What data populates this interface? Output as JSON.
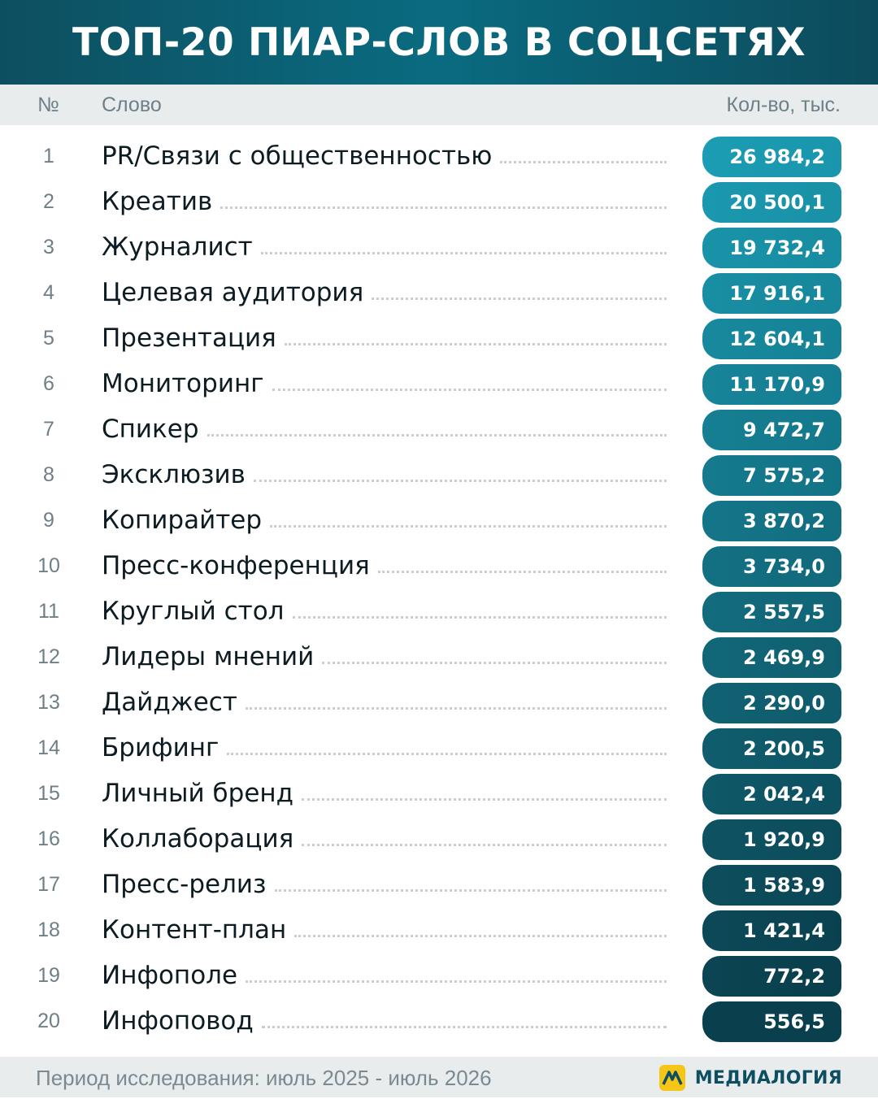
{
  "header": {
    "title": "ТОП-20 ПИАР-СЛОВ В СОЦСЕТЯХ"
  },
  "columns": {
    "num": "№",
    "word": "Слово",
    "value": "Кол-во, тыс."
  },
  "chart_data": {
    "type": "table",
    "title": "ТОП-20 ПИАР-СЛОВ В СОЦСЕТЯХ",
    "columns": [
      "№",
      "Слово",
      "Кол-во, тыс."
    ],
    "rows": [
      {
        "rank": "1",
        "word": "PR/Связи с общественностью",
        "value": "26 984,2"
      },
      {
        "rank": "2",
        "word": "Креатив",
        "value": "20 500,1"
      },
      {
        "rank": "3",
        "word": "Журналист",
        "value": "19 732,4"
      },
      {
        "rank": "4",
        "word": "Целевая аудитория",
        "value": "17 916,1"
      },
      {
        "rank": "5",
        "word": "Презентация",
        "value": "12 604,1"
      },
      {
        "rank": "6",
        "word": "Мониторинг",
        "value": "11 170,9"
      },
      {
        "rank": "7",
        "word": "Спикер",
        "value": "9 472,7"
      },
      {
        "rank": "8",
        "word": "Эксклюзив",
        "value": "7 575,2"
      },
      {
        "rank": "9",
        "word": "Копирайтер",
        "value": "3 870,2"
      },
      {
        "rank": "10",
        "word": "Пресс-конференция",
        "value": "3 734,0"
      },
      {
        "rank": "11",
        "word": "Круглый стол",
        "value": "2 557,5"
      },
      {
        "rank": "12",
        "word": "Лидеры мнений",
        "value": "2 469,9"
      },
      {
        "rank": "13",
        "word": "Дайджест",
        "value": "2 290,0"
      },
      {
        "rank": "14",
        "word": "Брифинг",
        "value": "2 200,5"
      },
      {
        "rank": "15",
        "word": "Личный бренд",
        "value": "2 042,4"
      },
      {
        "rank": "16",
        "word": "Коллаборация",
        "value": "1 920,9"
      },
      {
        "rank": "17",
        "word": "Пресс-релиз",
        "value": "1 583,9"
      },
      {
        "rank": "18",
        "word": "Контент-план",
        "value": "1 421,4"
      },
      {
        "rank": "19",
        "word": "Инфополе",
        "value": "772,2"
      },
      {
        "rank": "20",
        "word": "Инфоповод",
        "value": "556,5"
      }
    ]
  },
  "colors": {
    "header_start": "#0d4f60",
    "header_mid": "#0a6b80",
    "pill_top": "#1b9db4",
    "pill_bottom": "#0a3f4d",
    "band": "#e8eced"
  },
  "footer": {
    "period": "Период исследования: июль 2025 - июль 2026",
    "brand": "МЕДИАЛОГИЯ",
    "brand_icon": "medialogia-logo-icon"
  }
}
